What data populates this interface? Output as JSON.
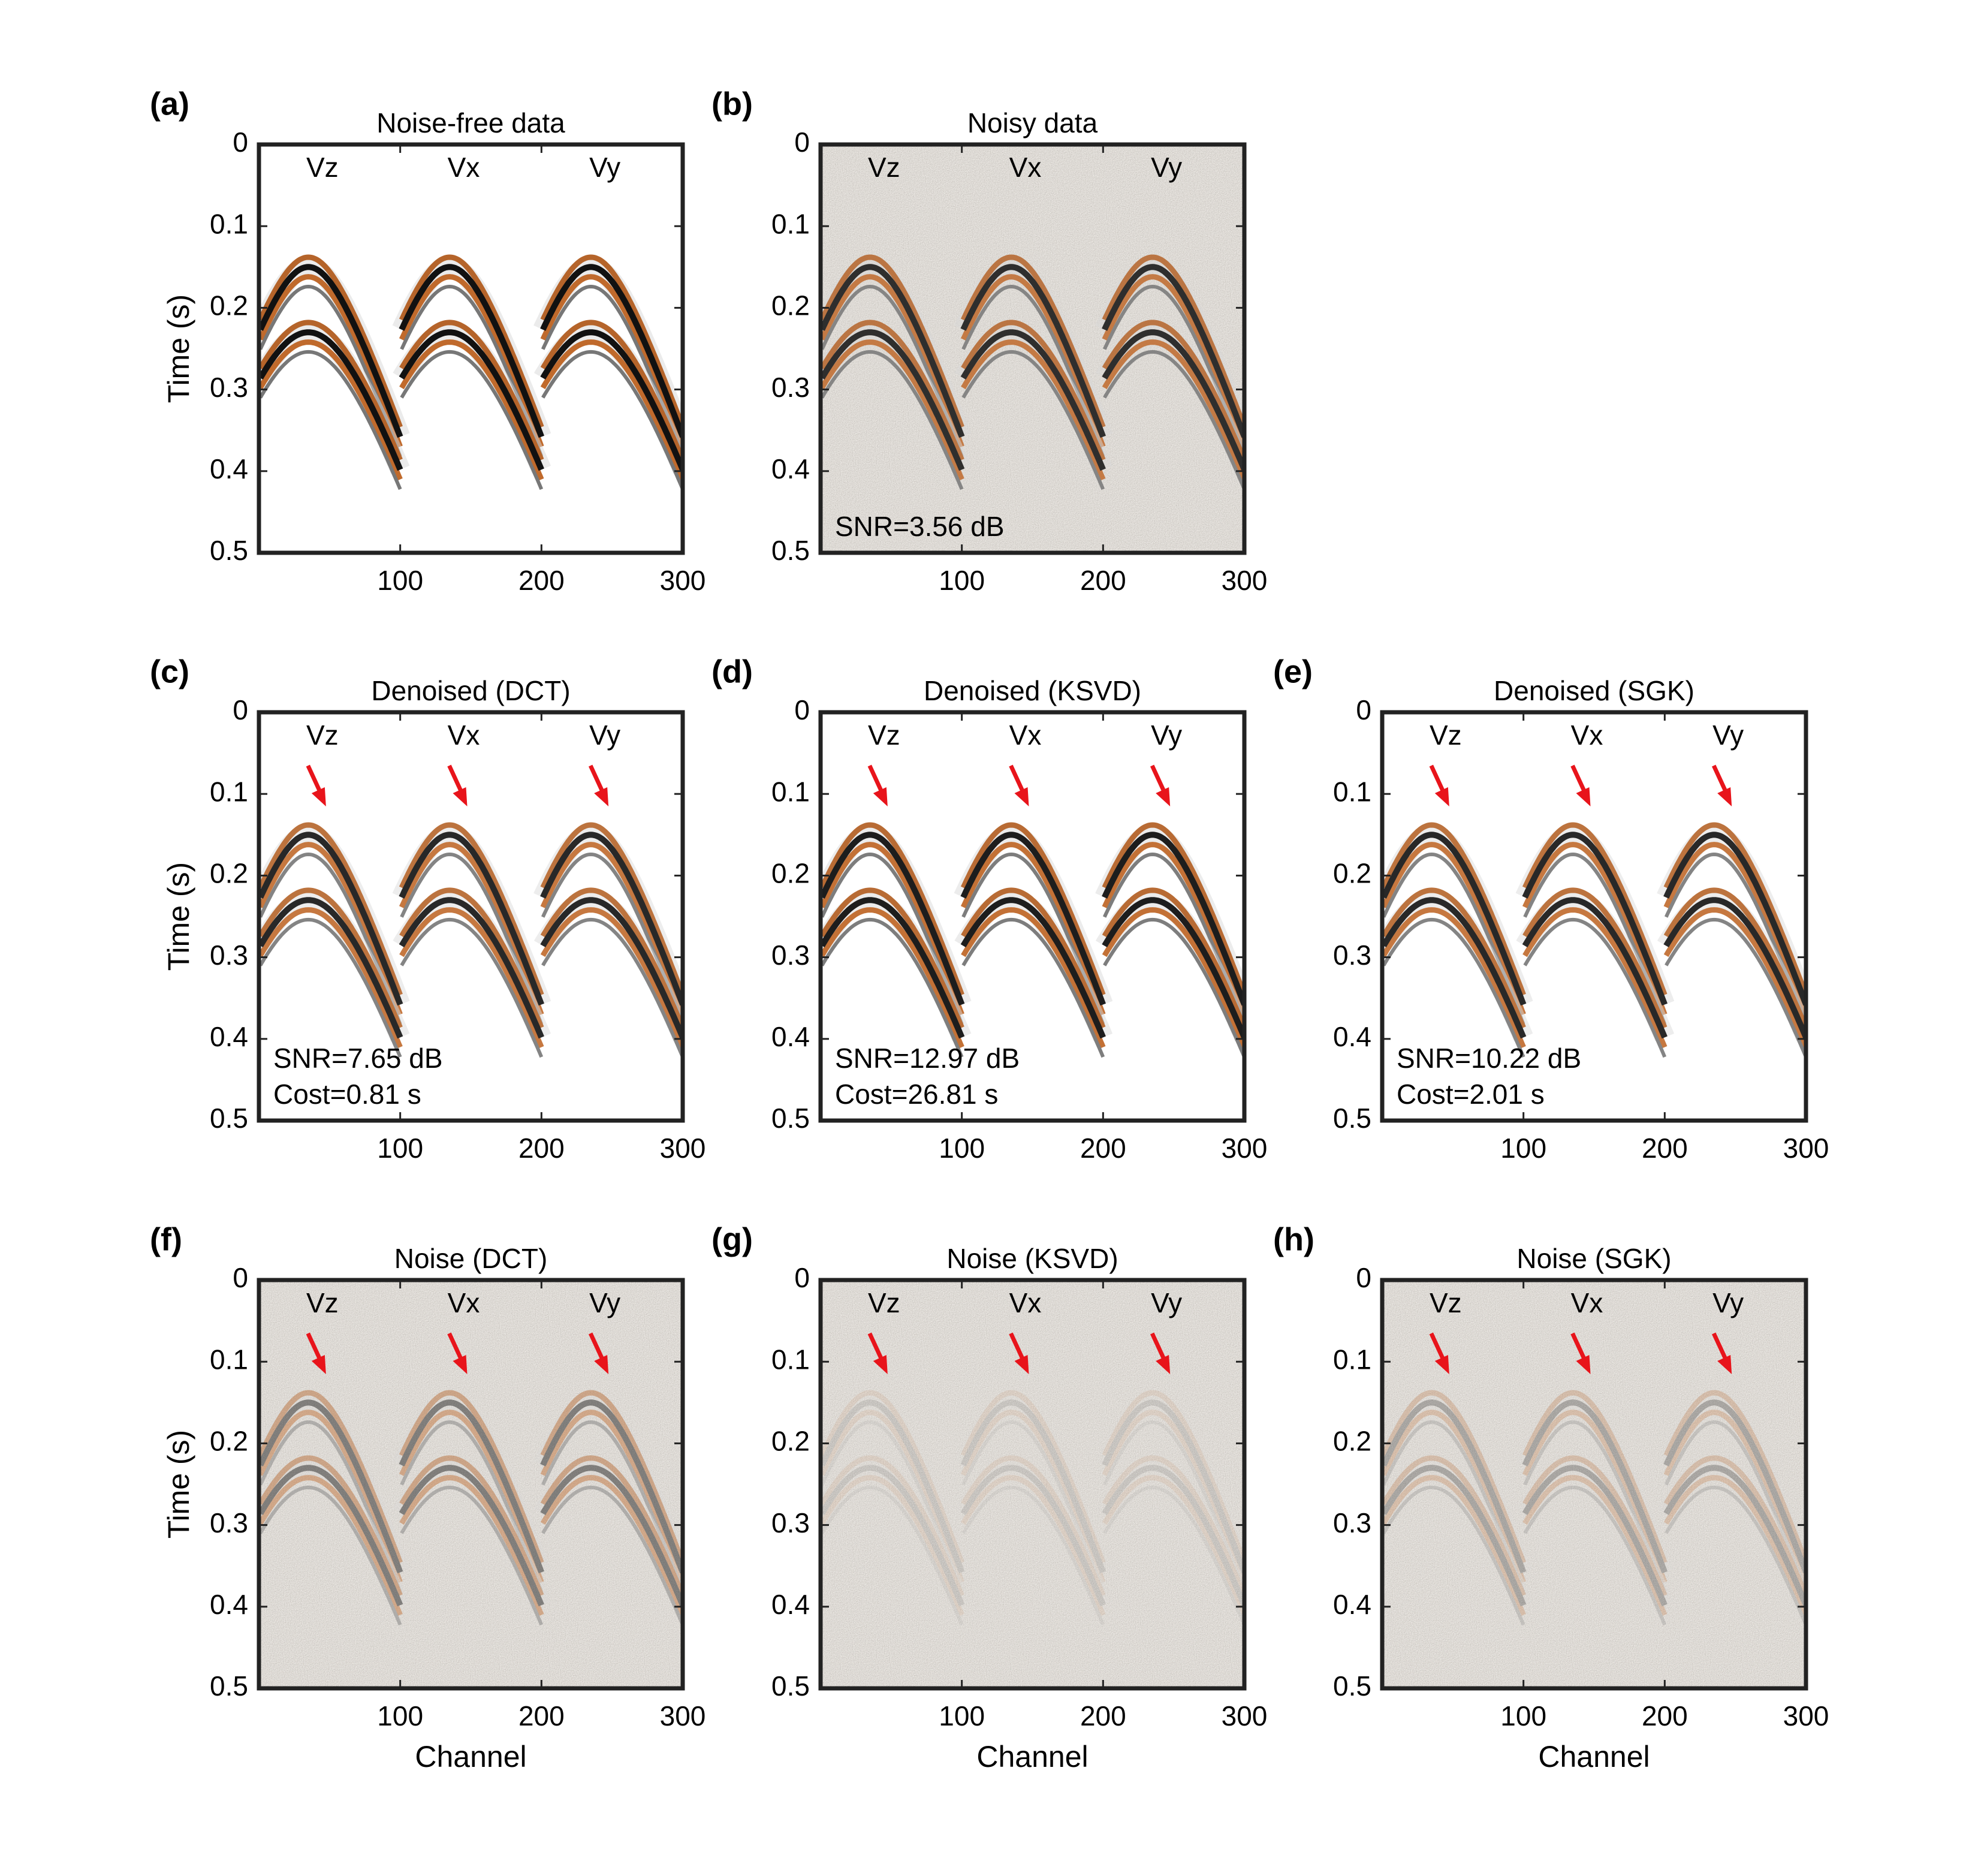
{
  "chart_data": [
    {
      "type": "seismic",
      "panel": "(a)",
      "title": "Noise-free data",
      "ylabel": "Time (s)",
      "components": [
        "Vz",
        "Vx",
        "Vy"
      ],
      "annotations": [],
      "xlim": [
        0,
        300
      ],
      "xticks": [
        100,
        200,
        300
      ],
      "ylim": [
        0,
        0.5
      ],
      "yticks": [
        0,
        0.1,
        0.2,
        0.3,
        0.4,
        0.5
      ]
    },
    {
      "type": "seismic",
      "panel": "(b)",
      "title": "Noisy data",
      "components": [
        "Vz",
        "Vx",
        "Vy"
      ],
      "annotations": [
        "SNR=3.56 dB"
      ],
      "xlim": [
        0,
        300
      ],
      "xticks": [
        100,
        200,
        300
      ],
      "ylim": [
        0,
        0.5
      ],
      "yticks": [
        0,
        0.1,
        0.2,
        0.3,
        0.4,
        0.5
      ]
    },
    {
      "type": "seismic",
      "panel": "(c)",
      "title": "Denoised (DCT)",
      "ylabel": "Time (s)",
      "components": [
        "Vz",
        "Vx",
        "Vy"
      ],
      "annotations": [
        "SNR=7.65 dB",
        "Cost=0.81 s"
      ],
      "xlim": [
        0,
        300
      ],
      "xticks": [
        100,
        200,
        300
      ],
      "ylim": [
        0,
        0.5
      ],
      "yticks": [
        0,
        0.1,
        0.2,
        0.3,
        0.4,
        0.5
      ]
    },
    {
      "type": "seismic",
      "panel": "(d)",
      "title": "Denoised (KSVD)",
      "components": [
        "Vz",
        "Vx",
        "Vy"
      ],
      "annotations": [
        "SNR=12.97 dB",
        "Cost=26.81 s"
      ],
      "xlim": [
        0,
        300
      ],
      "xticks": [
        100,
        200,
        300
      ],
      "ylim": [
        0,
        0.5
      ],
      "yticks": [
        0,
        0.1,
        0.2,
        0.3,
        0.4,
        0.5
      ]
    },
    {
      "type": "seismic",
      "panel": "(e)",
      "title": "Denoised (SGK)",
      "components": [
        "Vz",
        "Vx",
        "Vy"
      ],
      "annotations": [
        "SNR=10.22 dB",
        "Cost=2.01 s"
      ],
      "xlim": [
        0,
        300
      ],
      "xticks": [
        100,
        200,
        300
      ],
      "ylim": [
        0,
        0.5
      ],
      "yticks": [
        0,
        0.1,
        0.2,
        0.3,
        0.4,
        0.5
      ]
    },
    {
      "type": "seismic",
      "panel": "(f)",
      "title": "Noise (DCT)",
      "ylabel": "Time (s)",
      "xlabel": "Channel",
      "components": [
        "Vz",
        "Vx",
        "Vy"
      ],
      "annotations": [],
      "xlim": [
        0,
        300
      ],
      "xticks": [
        100,
        200,
        300
      ],
      "ylim": [
        0,
        0.5
      ],
      "yticks": [
        0,
        0.1,
        0.2,
        0.3,
        0.4,
        0.5
      ]
    },
    {
      "type": "seismic",
      "panel": "(g)",
      "title": "Noise (KSVD)",
      "xlabel": "Channel",
      "components": [
        "Vz",
        "Vx",
        "Vy"
      ],
      "annotations": [],
      "xlim": [
        0,
        300
      ],
      "xticks": [
        100,
        200,
        300
      ],
      "ylim": [
        0,
        0.5
      ],
      "yticks": [
        0,
        0.1,
        0.2,
        0.3,
        0.4,
        0.5
      ]
    },
    {
      "type": "seismic",
      "panel": "(h)",
      "title": "Noise (SGK)",
      "xlabel": "Channel",
      "components": [
        "Vz",
        "Vx",
        "Vy"
      ],
      "annotations": [],
      "xlim": [
        0,
        300
      ],
      "xticks": [
        100,
        200,
        300
      ],
      "ylim": [
        0,
        0.5
      ],
      "yticks": [
        0,
        0.1,
        0.2,
        0.3,
        0.4,
        0.5
      ]
    }
  ]
}
